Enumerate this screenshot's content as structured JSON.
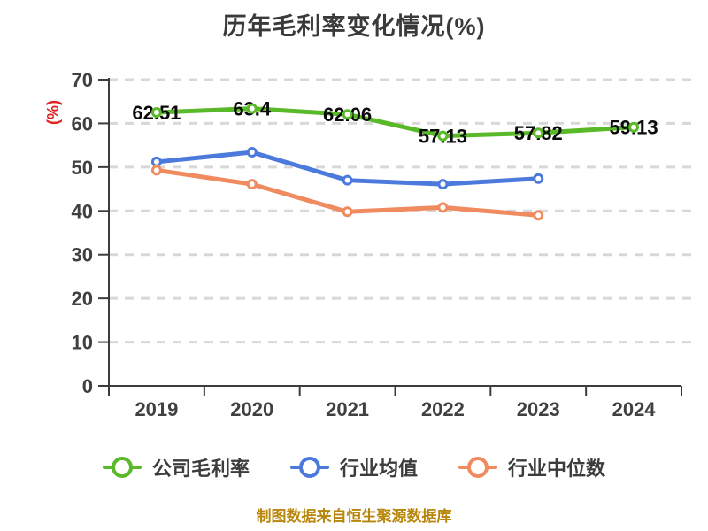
{
  "title": "历年毛利率变化情况(%)",
  "source_note": "制图数据来自恒生聚源数据库",
  "colors": {
    "company_line": "#5ab928",
    "industry_avg_line": "#4b7adc",
    "industry_median_line": "#f08a5f",
    "grid": "#d8d8d8",
    "axis": "#3c3c3c",
    "tick_text": "#404040",
    "title_text": "#3a3a3a",
    "data_label": "#0a0a0a",
    "y_axis_name": "#e02323",
    "source_text": "#b8860b",
    "background": "#ffffff"
  },
  "chart_data": {
    "type": "line",
    "title": "历年毛利率变化情况(%)",
    "categories": [
      "2019",
      "2020",
      "2021",
      "2022",
      "2023",
      "2024"
    ],
    "series": [
      {
        "name": "公司毛利率",
        "color": "#5ab928",
        "values": [
          62.51,
          63.4,
          62.06,
          57.13,
          57.82,
          59.13
        ],
        "show_labels": true
      },
      {
        "name": "行业均值",
        "color": "#4b7adc",
        "values": [
          51.2,
          53.4,
          47.0,
          46.1,
          47.4,
          null
        ],
        "show_labels": false
      },
      {
        "name": "行业中位数",
        "color": "#f08a5f",
        "values": [
          49.3,
          46.1,
          39.8,
          40.8,
          39.0,
          null
        ],
        "show_labels": false
      }
    ],
    "xlabel": "",
    "ylabel": "(%)",
    "ylim": [
      0,
      70
    ],
    "ytick_step": 10,
    "yticks": [
      0,
      10,
      20,
      30,
      40,
      50,
      60,
      70
    ],
    "grid": true,
    "grid_style": "dashed",
    "legend_position": "bottom",
    "marker": "circle-white-fill"
  }
}
